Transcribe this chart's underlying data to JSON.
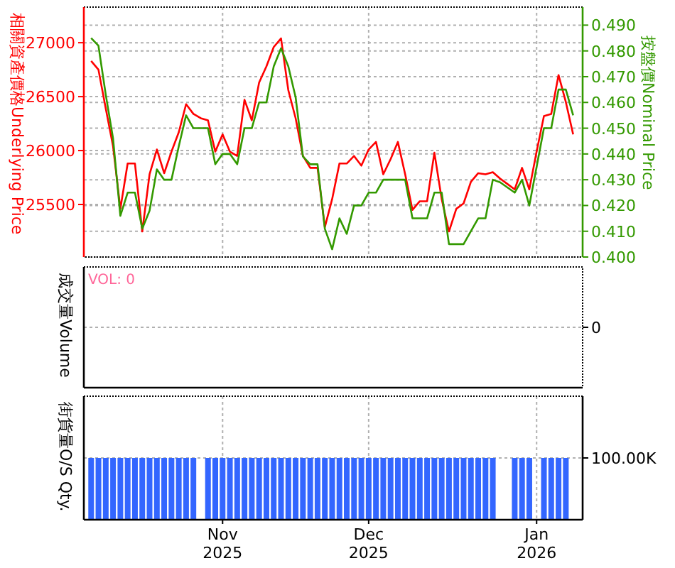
{
  "chart_data": [
    {
      "type": "line",
      "ylabel": "相關資產價格Underlying Price",
      "y2label": "按盤價Nominal Price",
      "categories": [
        null,
        null,
        null,
        null,
        null,
        null,
        null,
        null,
        null,
        null,
        null,
        null,
        null,
        null,
        null,
        null,
        null,
        null,
        null,
        null,
        null,
        null,
        null,
        null,
        null,
        null,
        null,
        null,
        null,
        null,
        null,
        null,
        null,
        null,
        null,
        null,
        null,
        null,
        null,
        null,
        null,
        null,
        null,
        null,
        null,
        null,
        null,
        null,
        null,
        null,
        null,
        null,
        null,
        null,
        null,
        null,
        null,
        null,
        null,
        null,
        null,
        null,
        null,
        null,
        null,
        null,
        null
      ],
      "ylim": [
        25013,
        27330
      ],
      "yticks": [
        25500,
        26000,
        26500,
        27000
      ],
      "y2lim": [
        0.4,
        0.497
      ],
      "y2ticks": [
        {
          "value": 0.4,
          "label": "0.400"
        },
        {
          "value": 0.41,
          "label": "0.410"
        },
        {
          "value": 0.42,
          "label": "0.420"
        },
        {
          "value": 0.43,
          "label": "0.430"
        },
        {
          "value": 0.44,
          "label": "0.440"
        },
        {
          "value": 0.45,
          "label": "0.450"
        },
        {
          "value": 0.46,
          "label": "0.460"
        },
        {
          "value": 0.47,
          "label": "0.470"
        },
        {
          "value": 0.48,
          "label": "0.480"
        },
        {
          "value": 0.49,
          "label": "0.490"
        }
      ],
      "grid": true,
      "tick_labels": "y",
      "series": [
        {
          "color": "#ff0000",
          "values": [
            26830,
            26750,
            26390,
            26040,
            25460,
            25880,
            25880,
            25250,
            25780,
            26010,
            25790,
            25990,
            26170,
            26430,
            26340,
            26300,
            26280,
            25990,
            26150,
            25990,
            25950,
            26470,
            26280,
            26630,
            26780,
            26960,
            27040,
            26560,
            26300,
            25950,
            25840,
            25840,
            25290,
            25550,
            25880,
            25880,
            25950,
            25860,
            26010,
            26080,
            25780,
            25920,
            26080,
            25780,
            25450,
            25530,
            25530,
            25980,
            25550,
            25250,
            25460,
            25510,
            25710,
            25790,
            25780,
            25800,
            25740,
            25690,
            25640,
            25840,
            25640,
            25990,
            26320,
            26340,
            26700,
            26450,
            26150
          ]
        },
        {
          "color": "#339900",
          "axis": "y2",
          "values": [
            0.485,
            0.482,
            0.463,
            0.446,
            0.416,
            0.425,
            0.425,
            0.411,
            0.418,
            0.434,
            0.43,
            0.43,
            0.443,
            0.455,
            0.45,
            0.45,
            0.45,
            0.436,
            0.44,
            0.44,
            0.436,
            0.45,
            0.45,
            0.46,
            0.46,
            0.474,
            0.481,
            0.474,
            0.462,
            0.439,
            0.436,
            0.436,
            0.411,
            0.403,
            0.415,
            0.409,
            0.42,
            0.42,
            0.425,
            0.425,
            0.43,
            0.43,
            0.43,
            0.43,
            0.415,
            0.415,
            0.415,
            0.425,
            0.425,
            0.405,
            0.405,
            0.405,
            0.41,
            0.415,
            0.415,
            0.43,
            0.429,
            0.427,
            0.425,
            0.43,
            0.42,
            0.435,
            0.45,
            0.45,
            0.465,
            0.465,
            0.455
          ]
        }
      ]
    },
    {
      "type": "other",
      "ylabel": "成交量Volume",
      "annotations": [
        "VOL: 0",
        "0"
      ]
    },
    {
      "type": "bar",
      "ylabel": "街貨量O/S Qty.",
      "categories": [
        null,
        null,
        null,
        null,
        null,
        null,
        null,
        null,
        null,
        null,
        null,
        null,
        null,
        null,
        null,
        null,
        null,
        null,
        "Nov 2025",
        null,
        null,
        null,
        null,
        null,
        null,
        null,
        null,
        null,
        null,
        null,
        null,
        null,
        null,
        null,
        null,
        null,
        null,
        null,
        "Dec 2025",
        null,
        null,
        null,
        null,
        null,
        null,
        null,
        null,
        null,
        null,
        null,
        null,
        null,
        null,
        null,
        null,
        null,
        null,
        null,
        null,
        null,
        null,
        "Jan 2026",
        null,
        null,
        null,
        null,
        null
      ],
      "y2lim": [
        0,
        200000
      ],
      "y2ticks": [
        {
          "value": 100000,
          "label": "100.00K"
        }
      ],
      "grid": true,
      "series": [
        {
          "color": "#3366ff",
          "axis": "y2",
          "values": [
            100000,
            100000,
            100000,
            100000,
            100000,
            100000,
            100000,
            100000,
            100000,
            100000,
            100000,
            100000,
            100000,
            100000,
            100000,
            null,
            100000,
            100000,
            100000,
            100000,
            100000,
            100000,
            100000,
            100000,
            100000,
            100000,
            100000,
            100000,
            100000,
            100000,
            100000,
            100000,
            100000,
            100000,
            100000,
            100000,
            100000,
            100000,
            100000,
            100000,
            100000,
            100000,
            100000,
            100000,
            100000,
            100000,
            100000,
            100000,
            100000,
            100000,
            100000,
            100000,
            100000,
            100000,
            100000,
            100000,
            null,
            null,
            100000,
            100000,
            100000,
            null,
            100000,
            100000,
            100000,
            100000,
            null
          ]
        }
      ]
    }
  ]
}
